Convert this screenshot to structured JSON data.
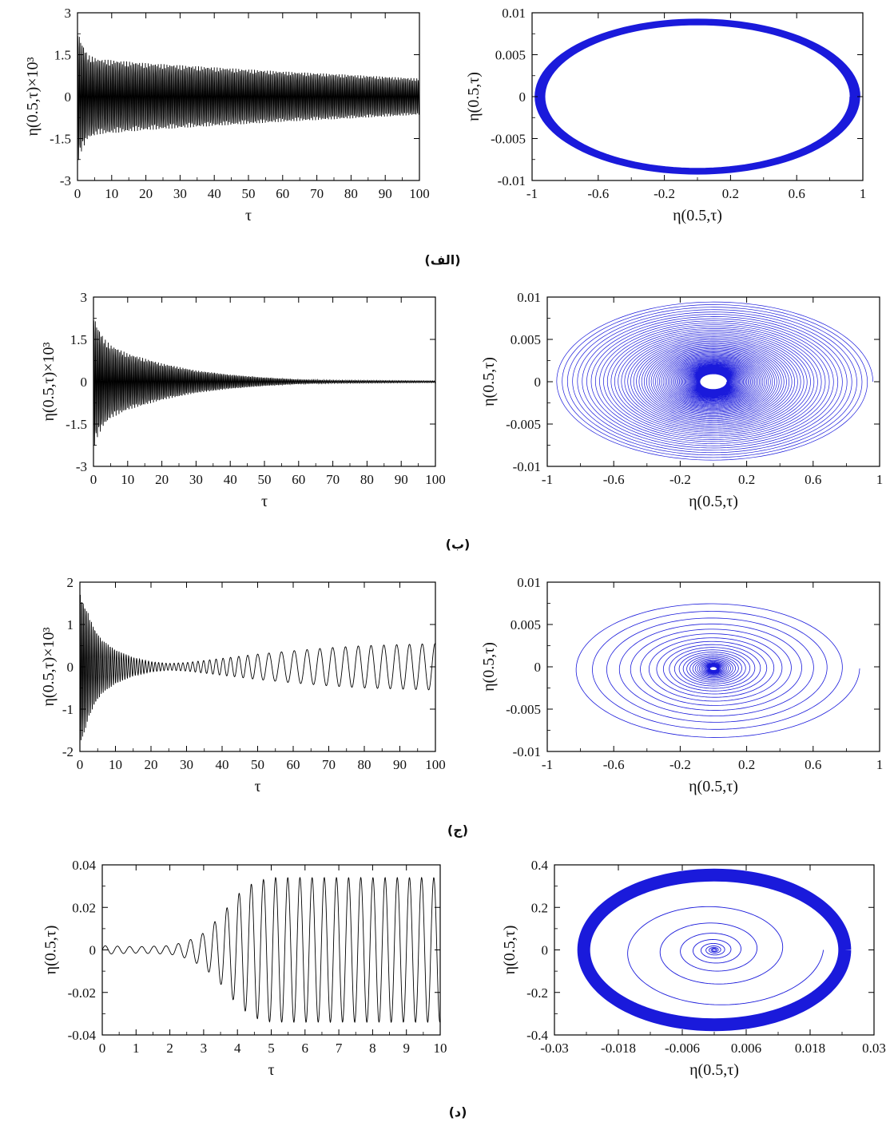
{
  "figure": {
    "captions": [
      "(الف)",
      "(ب)",
      "(ج)",
      "(د)"
    ]
  },
  "chart_data": [
    {
      "id": "alef-time",
      "type": "line",
      "xlabel": "τ",
      "ylabel": "η(0.5,τ)×10³",
      "xlim": [
        0,
        100
      ],
      "ylim": [
        -3,
        3
      ],
      "xticks": [
        "0",
        "10",
        "20",
        "30",
        "40",
        "50",
        "60",
        "70",
        "80",
        "90",
        "100"
      ],
      "yticks": [
        "3",
        "1.5",
        "0",
        "-1.5",
        "-3"
      ],
      "color": "#000000",
      "series": [
        {
          "kind": "oscillation",
          "t_max": 100,
          "samples": 1300,
          "period": 0.42,
          "envelope": [
            [
              0,
              2.4
            ],
            [
              1,
              2.0
            ],
            [
              3,
              1.5
            ],
            [
              6,
              1.35
            ],
            [
              20,
              1.2
            ],
            [
              40,
              1.05
            ],
            [
              60,
              0.9
            ],
            [
              80,
              0.78
            ],
            [
              100,
              0.65
            ]
          ]
        }
      ]
    },
    {
      "id": "alef-phase",
      "type": "line",
      "xlabel": "η(0.5,τ)",
      "ylabel": "η(0.5,τ)",
      "xlim": [
        -1,
        1
      ],
      "ylim": [
        -0.01,
        0.01
      ],
      "xticks": [
        "-1",
        "-0.6",
        "-0.2",
        "0.2",
        "0.6",
        "1"
      ],
      "yticks": [
        "0.01",
        "0.005",
        "0",
        "-0.005",
        "-0.01"
      ],
      "color": "#1a1adb",
      "series": [
        {
          "kind": "spiral",
          "cx": 0,
          "cy": 0,
          "rx_start": 0.98,
          "rx_end": 0.925,
          "ry_start": 0.0092,
          "ry_end": 0.0086,
          "turns": 40,
          "decay": "linear",
          "stroke": 2.2
        }
      ]
    },
    {
      "id": "be-time",
      "type": "line",
      "xlabel": "τ",
      "ylabel": "η(0.5,τ)×10³",
      "xlim": [
        0,
        100
      ],
      "ylim": [
        -3,
        3
      ],
      "xticks": [
        "0",
        "10",
        "20",
        "30",
        "40",
        "50",
        "60",
        "70",
        "80",
        "90",
        "100"
      ],
      "yticks": [
        "3",
        "1.5",
        "0",
        "-1.5",
        "-3"
      ],
      "color": "#000000",
      "series": [
        {
          "kind": "oscillation",
          "t_max": 100,
          "samples": 1300,
          "period": 0.42,
          "envelope": [
            [
              0,
              2.4
            ],
            [
              1,
              2.0
            ],
            [
              3,
              1.55
            ],
            [
              5,
              1.3
            ],
            [
              10,
              1.0
            ],
            [
              20,
              0.65
            ],
            [
              30,
              0.4
            ],
            [
              40,
              0.25
            ],
            [
              50,
              0.15
            ],
            [
              60,
              0.08
            ],
            [
              70,
              0.05
            ],
            [
              100,
              0.03
            ]
          ]
        }
      ]
    },
    {
      "id": "be-phase",
      "type": "line",
      "xlabel": "η(0.5,τ)",
      "ylabel": "η(0.5,τ)",
      "xlim": [
        -1,
        1
      ],
      "ylim": [
        -0.01,
        0.01
      ],
      "xticks": [
        "-1",
        "-0.6",
        "-0.2",
        "0.2",
        "0.6",
        "1"
      ],
      "yticks": [
        "0.01",
        "0.005",
        "0",
        "-0.005",
        "-0.01"
      ],
      "color": "#1a1adb",
      "series": [
        {
          "kind": "spiral",
          "cx": 0,
          "cy": 0,
          "rx_start": 0.96,
          "rx_end": 0.08,
          "ry_start": 0.0095,
          "ry_end": 0.0009,
          "turns": 70,
          "decay": "exp",
          "stroke": 0.7
        }
      ]
    },
    {
      "id": "jim-time",
      "type": "line",
      "xlabel": "τ",
      "ylabel": "η(0.5,τ)×10³",
      "xlim": [
        0,
        100
      ],
      "ylim": [
        -2,
        2
      ],
      "xticks": [
        "0",
        "10",
        "20",
        "30",
        "40",
        "50",
        "60",
        "70",
        "80",
        "90",
        "100"
      ],
      "yticks": [
        "2",
        "1",
        "0",
        "-1",
        "-2"
      ],
      "color": "#000000",
      "series": [
        {
          "kind": "oscillation",
          "t_max": 100,
          "samples": 1600,
          "period_start": 0.42,
          "period_end": 3.6,
          "envelope": [
            [
              0,
              1.8
            ],
            [
              1,
              1.6
            ],
            [
              3,
              1.1
            ],
            [
              6,
              0.65
            ],
            [
              10,
              0.4
            ],
            [
              15,
              0.22
            ],
            [
              20,
              0.12
            ],
            [
              25,
              0.08
            ],
            [
              30,
              0.1
            ],
            [
              40,
              0.2
            ],
            [
              50,
              0.3
            ],
            [
              60,
              0.38
            ],
            [
              70,
              0.45
            ],
            [
              80,
              0.5
            ],
            [
              100,
              0.55
            ]
          ]
        }
      ]
    },
    {
      "id": "jim-phase",
      "type": "line",
      "xlabel": "η(0.5,τ)",
      "ylabel": "η(0.5,τ)",
      "xlim": [
        -1,
        1
      ],
      "ylim": [
        -0.01,
        0.01
      ],
      "xticks": [
        "-1",
        "-0.6",
        "-0.2",
        "0.2",
        "0.6",
        "1"
      ],
      "yticks": [
        "0.01",
        "0.005",
        "0",
        "-0.005",
        "-0.01"
      ],
      "color": "#1a1adb",
      "series": [
        {
          "kind": "spiral",
          "cx": 0,
          "cy": -0.0002,
          "rx_start": 0.02,
          "rx_end": 0.88,
          "ry_start": 0.0002,
          "ry_end": 0.0084,
          "turns": 30,
          "decay": "exp-grow",
          "stroke": 0.8
        }
      ]
    },
    {
      "id": "dal-time",
      "type": "line",
      "xlabel": "τ",
      "ylabel": "η(0.5,τ)",
      "xlim": [
        0,
        10
      ],
      "ylim": [
        -0.04,
        0.04
      ],
      "xticks": [
        "0",
        "1",
        "2",
        "3",
        "4",
        "5",
        "6",
        "7",
        "8",
        "9",
        "10"
      ],
      "yticks": [
        "0.04",
        "0.02",
        "0",
        "-0.02",
        "-0.04"
      ],
      "color": "#000000",
      "series": [
        {
          "kind": "oscillation",
          "t_max": 10,
          "samples": 1400,
          "period": 0.36,
          "envelope": [
            [
              0,
              0.002
            ],
            [
              1,
              0.0015
            ],
            [
              2,
              0.002
            ],
            [
              2.5,
              0.004
            ],
            [
              3,
              0.008
            ],
            [
              3.5,
              0.016
            ],
            [
              4,
              0.026
            ],
            [
              4.5,
              0.032
            ],
            [
              5,
              0.034
            ],
            [
              10,
              0.034
            ]
          ]
        }
      ]
    },
    {
      "id": "dal-phase",
      "type": "line",
      "xlabel": "η(0.5,τ)",
      "ylabel": "η(0.5,τ)",
      "xlim": [
        -0.03,
        0.03
      ],
      "ylim": [
        -0.4,
        0.4
      ],
      "xticks": [
        "-0.03",
        "-0.018",
        "-0.006",
        "0.006",
        "0.018",
        "0.03"
      ],
      "yticks": [
        "0.4",
        "0.2",
        "0",
        "-0.2",
        "-0.4"
      ],
      "color": "#1a1adb",
      "series": [
        {
          "kind": "spiral",
          "cx": 0,
          "cy": 0,
          "rx_start": 0.0003,
          "rx_end": 0.0205,
          "ry_start": 0.004,
          "ry_end": 0.29,
          "turns": 9,
          "decay": "exp-grow",
          "stroke": 0.9
        },
        {
          "kind": "spiral",
          "cx": 0,
          "cy": 0,
          "rx_start": 0.0245,
          "rx_end": 0.0245,
          "ry_start": 0.352,
          "ry_end": 0.352,
          "turns": 1,
          "decay": "linear",
          "stroke": 16
        }
      ]
    }
  ]
}
